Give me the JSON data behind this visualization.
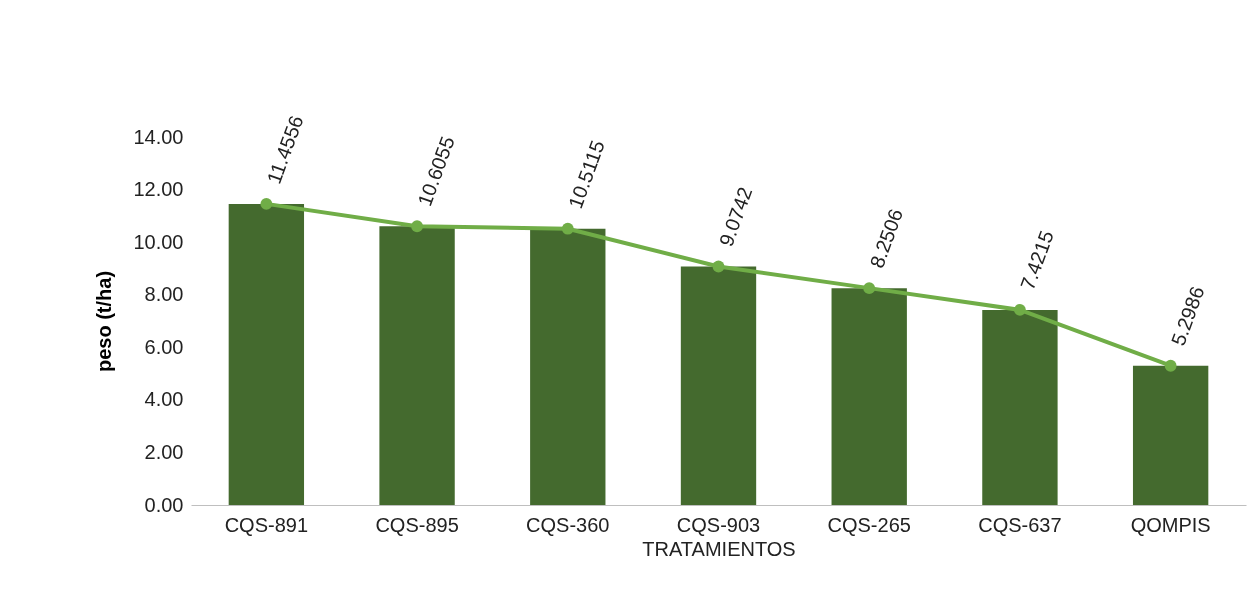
{
  "chart_data": {
    "type": "bar",
    "xlabel": "TRATAMIENTOS",
    "ylabel": "peso (t/ha)",
    "categories": [
      "CQS-891",
      "CQS-895",
      "CQS-360",
      "CQS-903",
      "CQS-265",
      "CQS-637",
      "QOMPIS"
    ],
    "series": [
      {
        "color": "#446a2e",
        "values": [
          11.4556,
          10.6055,
          10.5115,
          9.0742,
          8.2506,
          7.4215,
          5.2986
        ],
        "value_labels": [
          "11.4556",
          "10.6055",
          "10.5115",
          "9.0742",
          "8.2506",
          "7.4215",
          "5.2986"
        ]
      },
      {
        "type": "line",
        "color": "#70ad47",
        "marker": "circle",
        "values": [
          11.4556,
          10.6055,
          10.5115,
          9.0742,
          8.2506,
          7.4215,
          5.2986
        ]
      }
    ],
    "ylim": [
      0,
      14
    ],
    "yticks": [
      {
        "value": 0,
        "label": "0.00"
      },
      {
        "value": 2,
        "label": "2.00"
      },
      {
        "value": 4,
        "label": "4.00"
      },
      {
        "value": 6,
        "label": "6.00"
      },
      {
        "value": 8,
        "label": "8.00"
      },
      {
        "value": 10,
        "label": "10.00"
      },
      {
        "value": 12,
        "label": "12.00"
      },
      {
        "value": 14,
        "label": "14.00"
      }
    ],
    "grid": false
  }
}
